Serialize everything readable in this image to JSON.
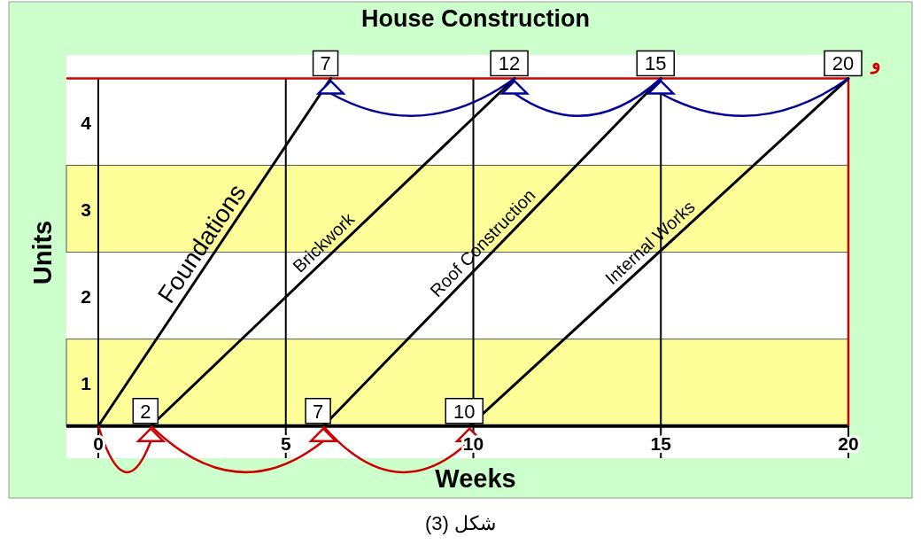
{
  "chart_data": {
    "type": "line",
    "title": "House Construction",
    "xlabel": "Weeks",
    "ylabel": "Units",
    "xlim": [
      -0.85,
      20
    ],
    "xticks": [
      0,
      5,
      10,
      15,
      20
    ],
    "ylim": [
      -0.37,
      4.27
    ],
    "yticks": [
      {
        "value": 0.5,
        "label": "1"
      },
      {
        "value": 1.5,
        "label": "2"
      },
      {
        "value": 2.5,
        "label": "3"
      },
      {
        "value": 3.5,
        "label": "4"
      }
    ],
    "grid": "x",
    "legend": false,
    "marker": "none",
    "line_style": "solid",
    "series": [
      {
        "name": "Foundations",
        "color": "#000000",
        "x": [
          0,
          6.2
        ],
        "values": [
          0,
          4
        ]
      },
      {
        "name": "Brickwork",
        "color": "#000000",
        "x": [
          1.4,
          11.1
        ],
        "values": [
          0,
          4
        ]
      },
      {
        "name": "Roof Construction",
        "color": "#000000",
        "x": [
          6.0,
          15.0
        ],
        "values": [
          0,
          4
        ]
      },
      {
        "name": "Internal Works",
        "color": "#000000",
        "x": [
          9.9,
          20.0
        ],
        "values": [
          0,
          4
        ]
      }
    ],
    "bands": [
      {
        "axis": "y",
        "from": 0,
        "to": 1,
        "color": "#ffff99"
      },
      {
        "axis": "y",
        "from": 2,
        "to": 3,
        "color": "#ffff99"
      }
    ],
    "ref_lines": [
      {
        "axis": "y",
        "value": 4,
        "label": "و",
        "color": "#cc0000"
      },
      {
        "axis": "x",
        "value": 20,
        "color": "#cc0000"
      }
    ],
    "annotations": [
      {
        "text": "2",
        "x": 1.4,
        "y": 0
      },
      {
        "text": "7",
        "x": 6.0,
        "y": 0
      },
      {
        "text": "10",
        "x": 9.9,
        "y": 0
      },
      {
        "text": "7",
        "x": 6.2,
        "y": 4
      },
      {
        "text": "12",
        "x": 11.1,
        "y": 4
      },
      {
        "text": "15",
        "x": 15.0,
        "y": 4
      },
      {
        "text": "20",
        "x": 20.0,
        "y": 4
      },
      "شكل (3)"
    ]
  }
}
